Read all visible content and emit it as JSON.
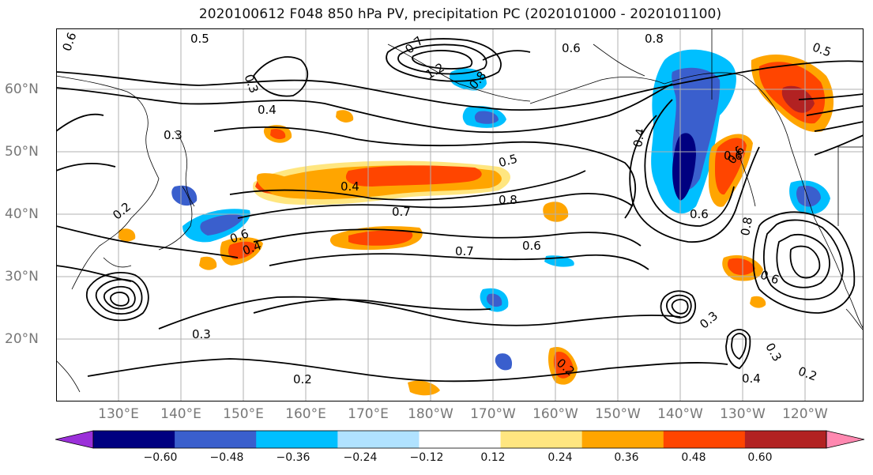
{
  "title": "2020100612 F048 850 hPa PV, precipitation PC (2020101000 - 2020101100)",
  "lat_labels": [
    "60°N",
    "50°N",
    "40°N",
    "30°N",
    "20°N"
  ],
  "lon_labels": [
    "130°E",
    "140°E",
    "150°E",
    "160°E",
    "170°E",
    "180°W",
    "170°W",
    "160°W",
    "150°W",
    "140°W",
    "130°W",
    "120°W"
  ],
  "contour_labels": [
    "0.6",
    "0.5",
    "0.3",
    "0.4",
    "1.2",
    "0.8",
    "0.6",
    "0.7",
    "0.8",
    "0.3",
    "0.2",
    "0.4",
    "0.7",
    "0.8",
    "0.5",
    "0.6",
    "0.6",
    "0.7",
    "0.6",
    "0.3",
    "0.2",
    "0.4",
    "0.6",
    "0.8",
    "0.6",
    "0.3",
    "0.3",
    "0.4",
    "0.2",
    "0.5",
    "0.6",
    "0.4",
    "0.2"
  ],
  "colorbar": {
    "colors": [
      "#9b30d9",
      "#000080",
      "#3a5fcd",
      "#00bfff",
      "#b0e2ff",
      "#ffffff",
      "#ffe680",
      "#ffa500",
      "#ff4500",
      "#b22222",
      "#ff88b0"
    ],
    "tick_labels": [
      "−0.60",
      "−0.48",
      "−0.36",
      "−0.24",
      "−0.12",
      "0.12",
      "0.24",
      "0.36",
      "0.48",
      "0.60"
    ]
  },
  "contour_color": "#000000",
  "coast_color": "#000000",
  "grid_color": "#b0b0b0"
}
